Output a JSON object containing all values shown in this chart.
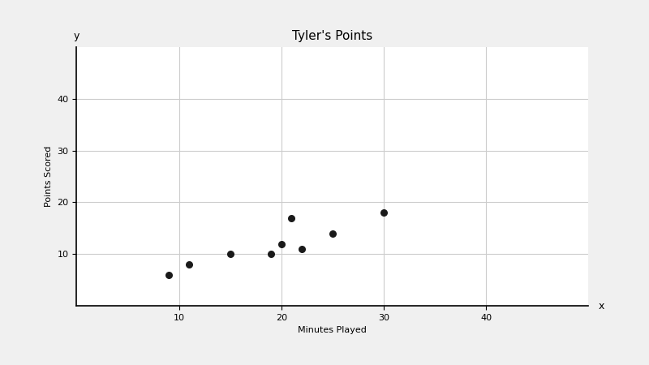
{
  "title": "Tyler's Points",
  "xlabel": "Minutes Played",
  "ylabel": "Points Scored",
  "x_label_axis": "x",
  "y_label_axis": "y",
  "xlim": [
    0,
    50
  ],
  "ylim": [
    0,
    50
  ],
  "xticks": [
    0,
    10,
    20,
    30,
    40
  ],
  "yticks": [
    0,
    10,
    20,
    30,
    40
  ],
  "x_data": [
    9,
    11,
    15,
    19,
    20,
    21,
    22,
    25,
    30
  ],
  "y_data": [
    6,
    8,
    10,
    10,
    12,
    17,
    11,
    14,
    18
  ],
  "dot_color": "#1a1a1a",
  "dot_size": 30,
  "background_color": "#ffffff",
  "grid_color": "#cccccc",
  "fig_bg": "#f0f0f0"
}
